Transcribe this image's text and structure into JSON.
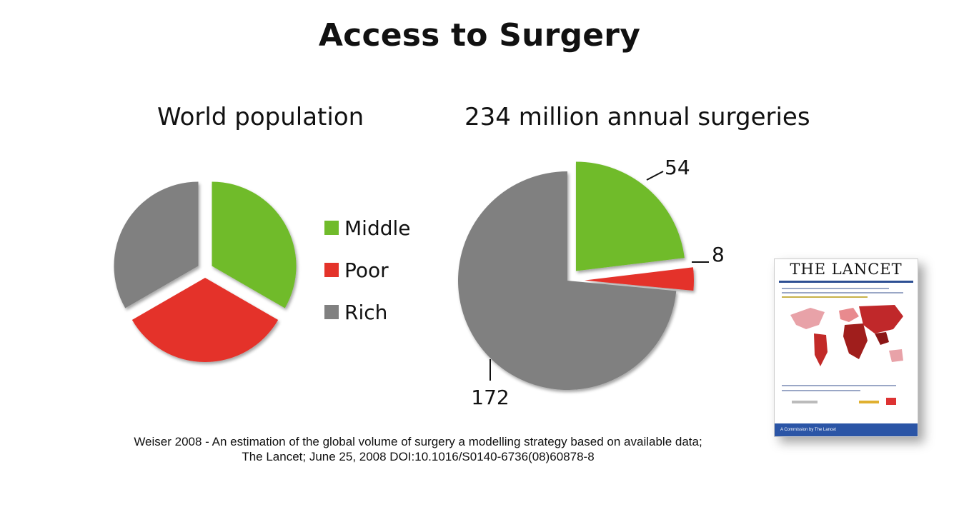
{
  "title": "Access to Surgery",
  "colors": {
    "Middle": "#70bb2b",
    "Poor": "#e4332a",
    "Rich": "#808080"
  },
  "chart_data": [
    {
      "type": "pie",
      "title": "World population",
      "categories": [
        "Middle",
        "Poor",
        "Rich"
      ],
      "values": [
        1,
        1,
        1
      ],
      "legend": "right",
      "data_labels": false
    },
    {
      "type": "pie",
      "title": "234 million annual surgeries",
      "categories": [
        "Middle",
        "Poor",
        "Rich"
      ],
      "values": [
        54,
        8,
        172
      ],
      "data_labels": [
        "54",
        "8",
        "172"
      ]
    }
  ],
  "legend_items": [
    "Middle",
    "Poor",
    "Rich"
  ],
  "citation": {
    "line1": "Weiser 2008 - An estimation of the global volume of surgery a modelling strategy based on available data;",
    "line2": "The Lancet; June 25, 2008 DOI:10.1016/S0140-6736(08)60878-8"
  },
  "cover": {
    "masthead": "THE LANCET",
    "bottom_text": "A Commission by The Lancet",
    "icon": "journal-cover-image"
  }
}
